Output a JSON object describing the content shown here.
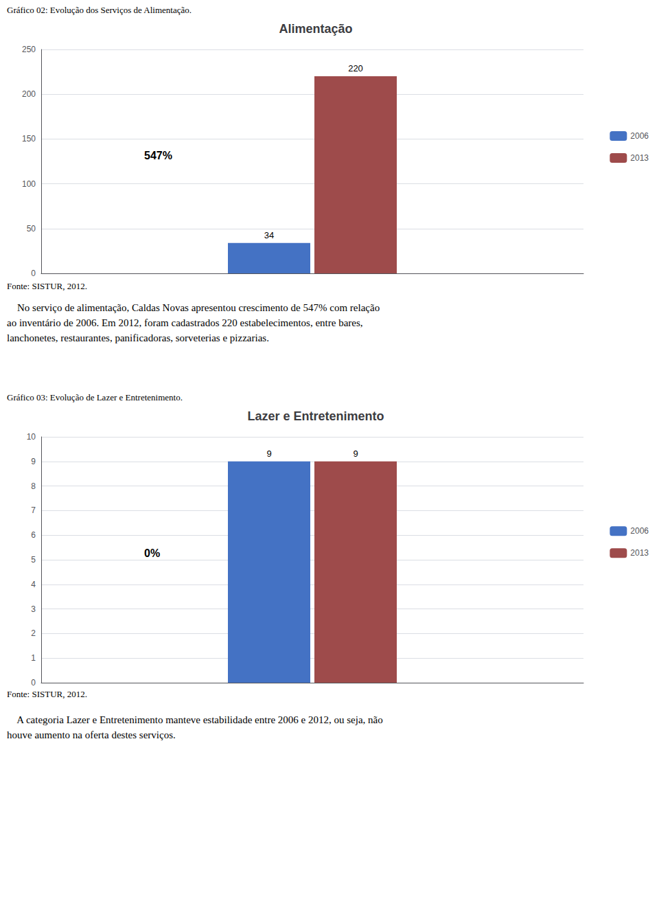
{
  "chart_data": [
    {
      "type": "bar",
      "title": "Alimentação",
      "caption": "Gráfico 02: Evolução dos Serviços de Alimentação.",
      "source": "Fonte: SISTUR, 2012.",
      "text": [
        "    No serviço de alimentação, Caldas Novas apresentou crescimento de 547% com relação",
        "ao inventário de 2006. Em 2012, foram cadastrados 220 estabelecimentos, entre bares,",
        "lanchonetes, restaurantes, panificadoras, sorveterias e pizzarias."
      ],
      "annotations": [
        "547%"
      ],
      "categories": [
        null
      ],
      "series": [
        {
          "name": "2006",
          "color": "#4472c4",
          "values": [
            34
          ]
        },
        {
          "name": "2013",
          "color": "#9e4b4b",
          "values": [
            220
          ]
        }
      ],
      "ylim": [
        0,
        250
      ],
      "yticks": [
        0,
        50,
        100,
        150,
        200,
        250
      ],
      "grid": true,
      "legend": "right",
      "data_labels": true,
      "tick_labels": "y"
    },
    {
      "type": "bar",
      "title": "Lazer e Entretenimento",
      "caption": "Gráfico 03: Evolução de Lazer e Entretenimento.",
      "source": "Fonte: SISTUR, 2012.",
      "text": [
        "    A categoria Lazer e Entretenimento manteve estabilidade entre 2006 e 2012, ou seja, não",
        "houve aumento na oferta destes serviços."
      ],
      "annotations": [
        "0%"
      ],
      "categories": [
        null
      ],
      "series": [
        {
          "name": "2006",
          "color": "#4472c4",
          "values": [
            9
          ]
        },
        {
          "name": "2013",
          "color": "#9e4b4b",
          "values": [
            9
          ]
        }
      ],
      "ylim": [
        0,
        10
      ],
      "yticks": [
        0,
        1,
        2,
        3,
        4,
        5,
        6,
        7,
        8,
        9,
        10
      ],
      "grid": true,
      "legend": "right",
      "data_labels": true,
      "tick_labels": "y"
    }
  ]
}
